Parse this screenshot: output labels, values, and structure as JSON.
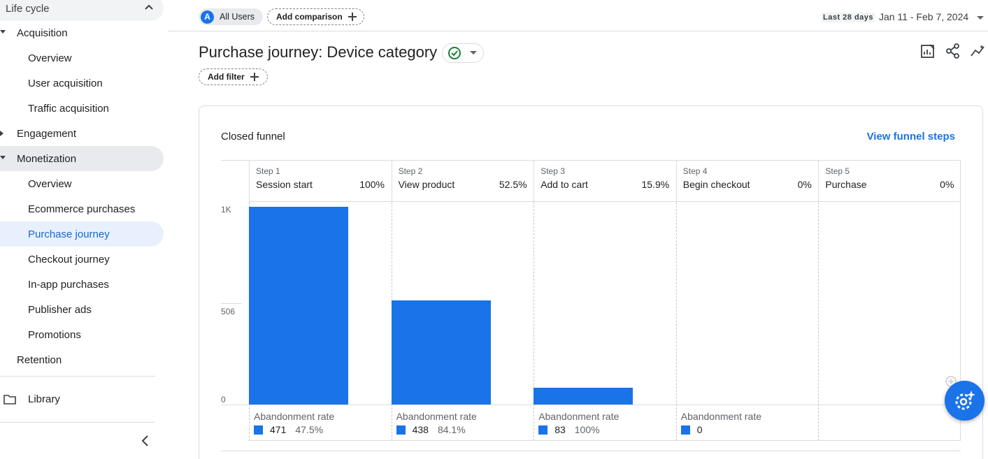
{
  "sidebar": {
    "lifecycle": "Life cycle",
    "acquisition": "Acquisition",
    "acq_items": [
      "Overview",
      "User acquisition",
      "Traffic acquisition"
    ],
    "engagement": "Engagement",
    "monetization": "Monetization",
    "mon_items": [
      "Overview",
      "Ecommerce purchases",
      "Purchase journey",
      "Checkout journey",
      "In-app purchases",
      "Publisher ads",
      "Promotions"
    ],
    "retention": "Retention",
    "library": "Library"
  },
  "topbar": {
    "users_avatar": "A",
    "users_chip": "All Users",
    "add_comparison": "Add comparison",
    "date_label": "Last 28 days",
    "date_range": "Jan 11 - Feb 7, 2024"
  },
  "header": {
    "title": "Purchase journey: Device category",
    "add_filter": "Add filter"
  },
  "card": {
    "title": "Closed funnel",
    "link": "View funnel steps"
  },
  "colors": {
    "accent": "#1a73e8",
    "selected_bg": "#e8f0fe",
    "check": "#188038"
  },
  "chart_data": {
    "type": "bar",
    "categories": [
      "Session start",
      "View product",
      "Add to cart",
      "Begin checkout",
      "Purchase"
    ],
    "steps": [
      "Step 1",
      "Step 2",
      "Step 3",
      "Step 4",
      "Step 5"
    ],
    "completion_rates": [
      "100%",
      "52.5%",
      "15.9%",
      "0%",
      "0%"
    ],
    "values": [
      992,
      521,
      83,
      0,
      0
    ],
    "ylim": [
      0,
      1012
    ],
    "y_ticks": [
      "0",
      "506",
      "1K"
    ],
    "abandonment_label": "Abandonment rate",
    "abandonment": [
      {
        "count": "471",
        "rate": "47.5%"
      },
      {
        "count": "438",
        "rate": "84.1%"
      },
      {
        "count": "83",
        "rate": "100%"
      },
      {
        "count": "0",
        "rate": ""
      }
    ]
  }
}
